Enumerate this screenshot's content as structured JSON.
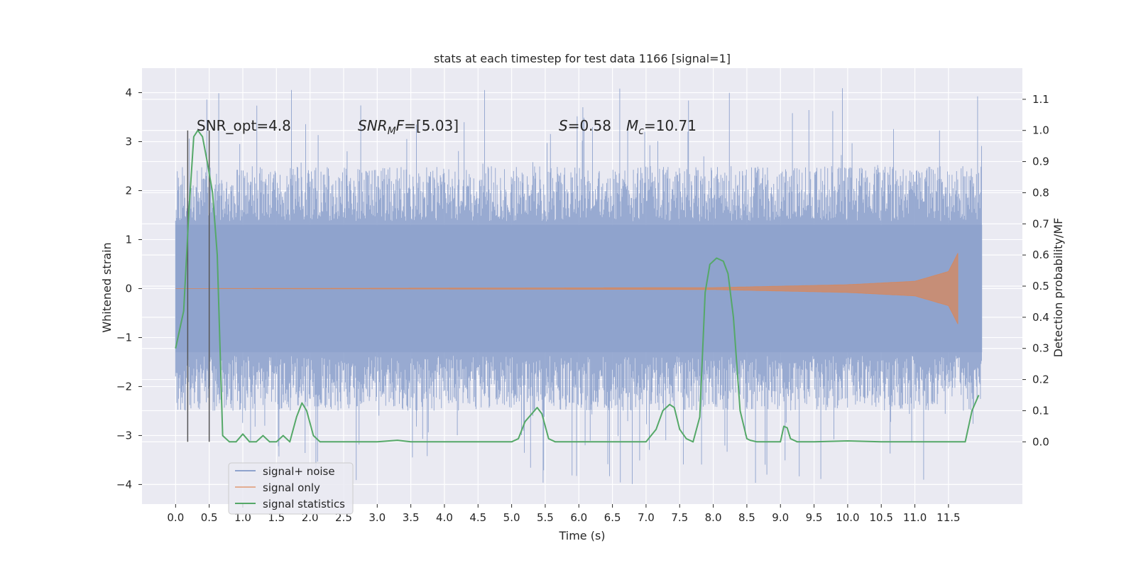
{
  "chart_data": {
    "type": "line",
    "title": "stats at each timestep for test data 1166 [signal=1]",
    "xlabel": "Time (s)",
    "ylabel_left": "Whitened strain",
    "ylabel_right": "Detection probability/MF",
    "xlim": [
      -0.5,
      12.6
    ],
    "ylim_left": [
      -4.4,
      4.5
    ],
    "ylim_right": [
      -0.2,
      1.2
    ],
    "x_ticks": [
      "0.0",
      "0.5",
      "1.0",
      "1.5",
      "2.0",
      "2.5",
      "3.0",
      "3.5",
      "4.0",
      "4.5",
      "5.0",
      "5.5",
      "6.0",
      "6.5",
      "7.0",
      "7.5",
      "8.0",
      "8.5",
      "9.0",
      "9.5",
      "10.0",
      "10.5",
      "11.0",
      "11.5"
    ],
    "y_ticks_left": [
      "4",
      "3",
      "2",
      "1",
      "0",
      "−1",
      "−2",
      "−3",
      "−4"
    ],
    "y_ticks_right": [
      "1.1",
      "1.0",
      "0.9",
      "0.8",
      "0.7",
      "0.6",
      "0.5",
      "0.4",
      "0.3",
      "0.2",
      "0.1",
      "0.0"
    ],
    "grid": true,
    "legend_position": "lower-left",
    "annotations": {
      "snr_opt": "SNR_opt=4.8",
      "snr_mf": "=[5.03]",
      "s_value": "=0.58",
      "mc_value": "=10.71"
    },
    "vlines_x": [
      0.18,
      0.5
    ],
    "series": [
      {
        "name": "signal+ noise",
        "color": "#8fa3cd",
        "axis": "left",
        "x_range": [
          0.0,
          12.0
        ],
        "band_core": [
          -1.3,
          1.3
        ],
        "band_typical": [
          -2.5,
          2.5
        ],
        "band_peaks": [
          -4.0,
          4.1
        ]
      },
      {
        "name": "signal only",
        "color": "#dd8452",
        "axis": "left",
        "x_range": [
          0.0,
          11.65
        ],
        "amplitude_points": [
          [
            0.0,
            0.0
          ],
          [
            8.0,
            0.02
          ],
          [
            10.0,
            0.08
          ],
          [
            11.0,
            0.15
          ],
          [
            11.5,
            0.35
          ],
          [
            11.65,
            0.75
          ]
        ]
      },
      {
        "name": "signal statistics",
        "color": "#55a868",
        "axis": "right",
        "x": [
          0.0,
          0.12,
          0.2,
          0.27,
          0.33,
          0.4,
          0.47,
          0.55,
          0.62,
          0.7,
          0.8,
          0.9,
          1.0,
          1.1,
          1.2,
          1.3,
          1.4,
          1.5,
          1.6,
          1.7,
          1.8,
          1.88,
          1.95,
          2.05,
          2.15,
          2.3,
          2.5,
          3.0,
          3.3,
          3.5,
          4.0,
          4.5,
          5.0,
          5.1,
          5.2,
          5.3,
          5.38,
          5.45,
          5.55,
          5.65,
          6.0,
          6.5,
          7.0,
          7.15,
          7.25,
          7.35,
          7.42,
          7.5,
          7.6,
          7.7,
          7.8,
          7.88,
          7.95,
          8.05,
          8.15,
          8.22,
          8.3,
          8.4,
          8.5,
          8.55,
          8.65,
          8.9,
          9.0,
          9.05,
          9.1,
          9.15,
          9.25,
          9.5,
          10.0,
          10.5,
          11.0,
          11.5,
          11.75,
          11.85,
          11.95
        ],
        "values": [
          0.3,
          0.42,
          0.75,
          0.98,
          1.0,
          0.98,
          0.9,
          0.8,
          0.6,
          0.02,
          0.0,
          0.0,
          0.025,
          0.0,
          0.0,
          0.02,
          0.0,
          0.0,
          0.02,
          0.0,
          0.08,
          0.125,
          0.1,
          0.02,
          0.0,
          0.0,
          0.0,
          0.0,
          0.005,
          0.0,
          0.0,
          0.0,
          0.0,
          0.01,
          0.065,
          0.09,
          0.11,
          0.09,
          0.01,
          0.0,
          0.0,
          0.0,
          0.0,
          0.04,
          0.1,
          0.12,
          0.11,
          0.04,
          0.01,
          0.0,
          0.08,
          0.48,
          0.57,
          0.59,
          0.58,
          0.54,
          0.4,
          0.1,
          0.01,
          0.005,
          0.0,
          0.0,
          0.0,
          0.05,
          0.045,
          0.01,
          0.0,
          0.0,
          0.003,
          0.0,
          0.0,
          0.0,
          0.0,
          0.1,
          0.15
        ]
      }
    ]
  }
}
